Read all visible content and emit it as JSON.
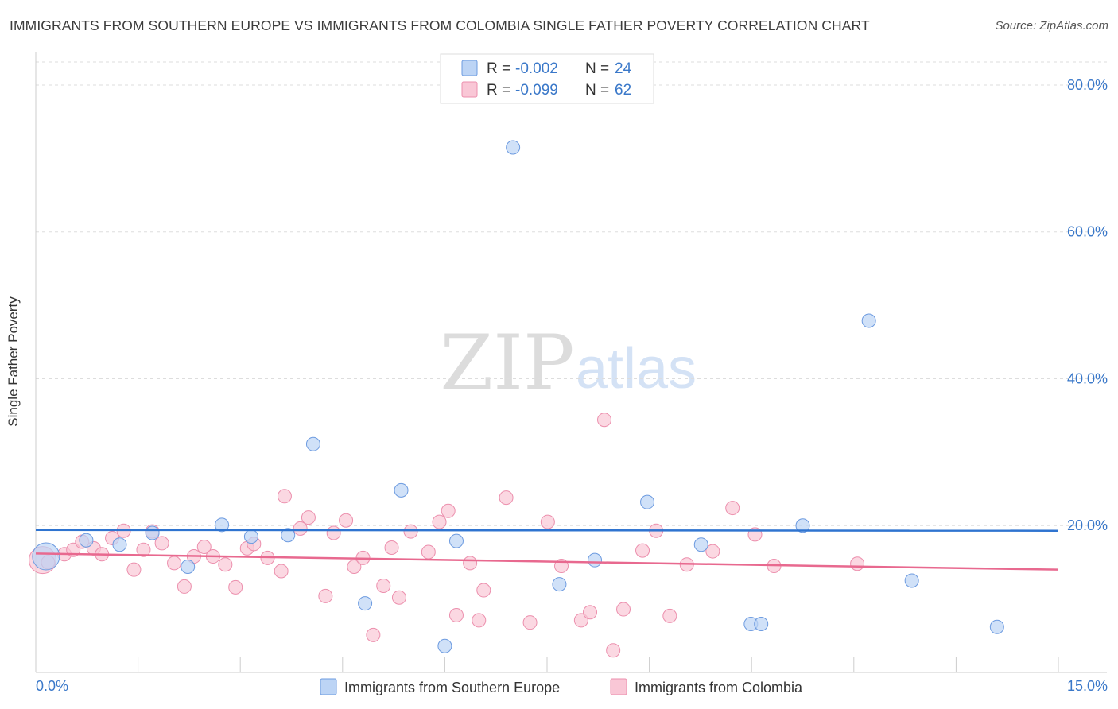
{
  "header": {
    "title": "IMMIGRANTS FROM SOUTHERN EUROPE VS IMMIGRANTS FROM COLOMBIA SINGLE FATHER POVERTY CORRELATION CHART",
    "source": "Source: ZipAtlas.com"
  },
  "watermark": {
    "zip": "ZIP",
    "atlas": "atlas"
  },
  "colors": {
    "blue_fill": "#bcd4f5",
    "blue_stroke": "#6d9be0",
    "blue_line": "#2f74d0",
    "pink_fill": "#f9c7d6",
    "pink_stroke": "#ec8fad",
    "pink_line": "#e8698f",
    "axis_label": "#3a78c9",
    "grid": "#dddddd"
  },
  "legend": {
    "series1": {
      "r_label": "R = ",
      "r_value": "-0.002",
      "n_label": "N = ",
      "n_value": "24"
    },
    "series2": {
      "r_label": "R = ",
      "r_value": "-0.099",
      "n_label": "N = ",
      "n_value": "62"
    }
  },
  "chart_data": {
    "type": "scatter",
    "title": "IMMIGRANTS FROM SOUTHERN EUROPE VS IMMIGRANTS FROM COLOMBIA SINGLE FATHER POVERTY CORRELATION CHART",
    "xlabel": "",
    "ylabel": "Single Father Poverty",
    "xlim": [
      0,
      15
    ],
    "ylim": [
      0,
      84
    ],
    "x_tick_labels": [
      "0.0%",
      "15.0%"
    ],
    "y_ticks": [
      20,
      40,
      60,
      80
    ],
    "y_tick_labels": [
      "20.0%",
      "40.0%",
      "60.0%",
      "80.0%"
    ],
    "grid": true,
    "legend_position": "top-center",
    "series": [
      {
        "name": "Immigrants from Southern Europe",
        "color": "#6d9be0",
        "trend": {
          "x": [
            0,
            15
          ],
          "y": [
            19.4,
            19.3
          ]
        },
        "points": [
          {
            "x": 0.15,
            "y": 15.8,
            "big": true
          },
          {
            "x": 0.74,
            "y": 18.0
          },
          {
            "x": 1.23,
            "y": 17.4
          },
          {
            "x": 1.71,
            "y": 19.0
          },
          {
            "x": 2.23,
            "y": 14.4
          },
          {
            "x": 2.73,
            "y": 20.1
          },
          {
            "x": 3.16,
            "y": 18.5
          },
          {
            "x": 3.7,
            "y": 18.7
          },
          {
            "x": 4.07,
            "y": 31.1
          },
          {
            "x": 4.83,
            "y": 9.4
          },
          {
            "x": 5.36,
            "y": 24.8
          },
          {
            "x": 6.0,
            "y": 3.6
          },
          {
            "x": 6.17,
            "y": 17.9
          },
          {
            "x": 7.0,
            "y": 71.5
          },
          {
            "x": 7.68,
            "y": 12.0
          },
          {
            "x": 8.2,
            "y": 15.3
          },
          {
            "x": 8.97,
            "y": 23.2
          },
          {
            "x": 9.76,
            "y": 17.4
          },
          {
            "x": 10.49,
            "y": 6.6
          },
          {
            "x": 10.64,
            "y": 6.6
          },
          {
            "x": 11.25,
            "y": 20.0
          },
          {
            "x": 12.22,
            "y": 47.9
          },
          {
            "x": 12.85,
            "y": 12.5
          },
          {
            "x": 14.1,
            "y": 6.2
          }
        ]
      },
      {
        "name": "Immigrants from Colombia",
        "color": "#ec8fad",
        "trend": {
          "x": [
            0,
            15
          ],
          "y": [
            16.2,
            14.0
          ]
        },
        "points": [
          {
            "x": 0.1,
            "y": 15.3,
            "big": true
          },
          {
            "x": 0.18,
            "y": 15.0
          },
          {
            "x": 0.42,
            "y": 16.1
          },
          {
            "x": 0.55,
            "y": 16.7
          },
          {
            "x": 0.68,
            "y": 17.8
          },
          {
            "x": 0.85,
            "y": 16.9
          },
          {
            "x": 0.97,
            "y": 16.1
          },
          {
            "x": 1.12,
            "y": 18.3
          },
          {
            "x": 1.29,
            "y": 19.3
          },
          {
            "x": 1.44,
            "y": 14.0
          },
          {
            "x": 1.58,
            "y": 16.7
          },
          {
            "x": 1.71,
            "y": 19.2
          },
          {
            "x": 1.85,
            "y": 17.6
          },
          {
            "x": 2.03,
            "y": 14.9
          },
          {
            "x": 2.18,
            "y": 11.7
          },
          {
            "x": 2.32,
            "y": 15.8
          },
          {
            "x": 2.47,
            "y": 17.1
          },
          {
            "x": 2.6,
            "y": 15.8
          },
          {
            "x": 2.78,
            "y": 14.7
          },
          {
            "x": 2.93,
            "y": 11.6
          },
          {
            "x": 3.1,
            "y": 16.9
          },
          {
            "x": 3.2,
            "y": 17.5
          },
          {
            "x": 3.4,
            "y": 15.6
          },
          {
            "x": 3.6,
            "y": 13.8
          },
          {
            "x": 3.65,
            "y": 24.0
          },
          {
            "x": 3.88,
            "y": 19.6
          },
          {
            "x": 4.0,
            "y": 21.1
          },
          {
            "x": 4.25,
            "y": 10.4
          },
          {
            "x": 4.37,
            "y": 19.0
          },
          {
            "x": 4.55,
            "y": 20.7
          },
          {
            "x": 4.67,
            "y": 14.4
          },
          {
            "x": 4.8,
            "y": 15.6
          },
          {
            "x": 4.95,
            "y": 5.1
          },
          {
            "x": 5.1,
            "y": 11.8
          },
          {
            "x": 5.22,
            "y": 17.0
          },
          {
            "x": 5.33,
            "y": 10.2
          },
          {
            "x": 5.5,
            "y": 19.2
          },
          {
            "x": 5.76,
            "y": 16.4
          },
          {
            "x": 5.92,
            "y": 20.5
          },
          {
            "x": 6.05,
            "y": 22.0
          },
          {
            "x": 6.17,
            "y": 7.8
          },
          {
            "x": 6.37,
            "y": 14.9
          },
          {
            "x": 6.57,
            "y": 11.2
          },
          {
            "x": 6.5,
            "y": 7.1
          },
          {
            "x": 6.9,
            "y": 23.8
          },
          {
            "x": 7.25,
            "y": 6.8
          },
          {
            "x": 7.51,
            "y": 20.5
          },
          {
            "x": 7.71,
            "y": 14.5
          },
          {
            "x": 8.0,
            "y": 7.1
          },
          {
            "x": 8.13,
            "y": 8.2
          },
          {
            "x": 8.34,
            "y": 34.4
          },
          {
            "x": 8.47,
            "y": 3.0
          },
          {
            "x": 8.62,
            "y": 8.6
          },
          {
            "x": 8.9,
            "y": 16.6
          },
          {
            "x": 9.1,
            "y": 19.3
          },
          {
            "x": 9.3,
            "y": 7.7
          },
          {
            "x": 9.55,
            "y": 14.7
          },
          {
            "x": 9.93,
            "y": 16.5
          },
          {
            "x": 10.22,
            "y": 22.4
          },
          {
            "x": 10.55,
            "y": 18.8
          },
          {
            "x": 10.83,
            "y": 14.5
          },
          {
            "x": 12.05,
            "y": 14.8
          }
        ]
      }
    ]
  },
  "bottom_legend": {
    "series1_label": "Immigrants from Southern Europe",
    "series2_label": "Immigrants from Colombia"
  }
}
